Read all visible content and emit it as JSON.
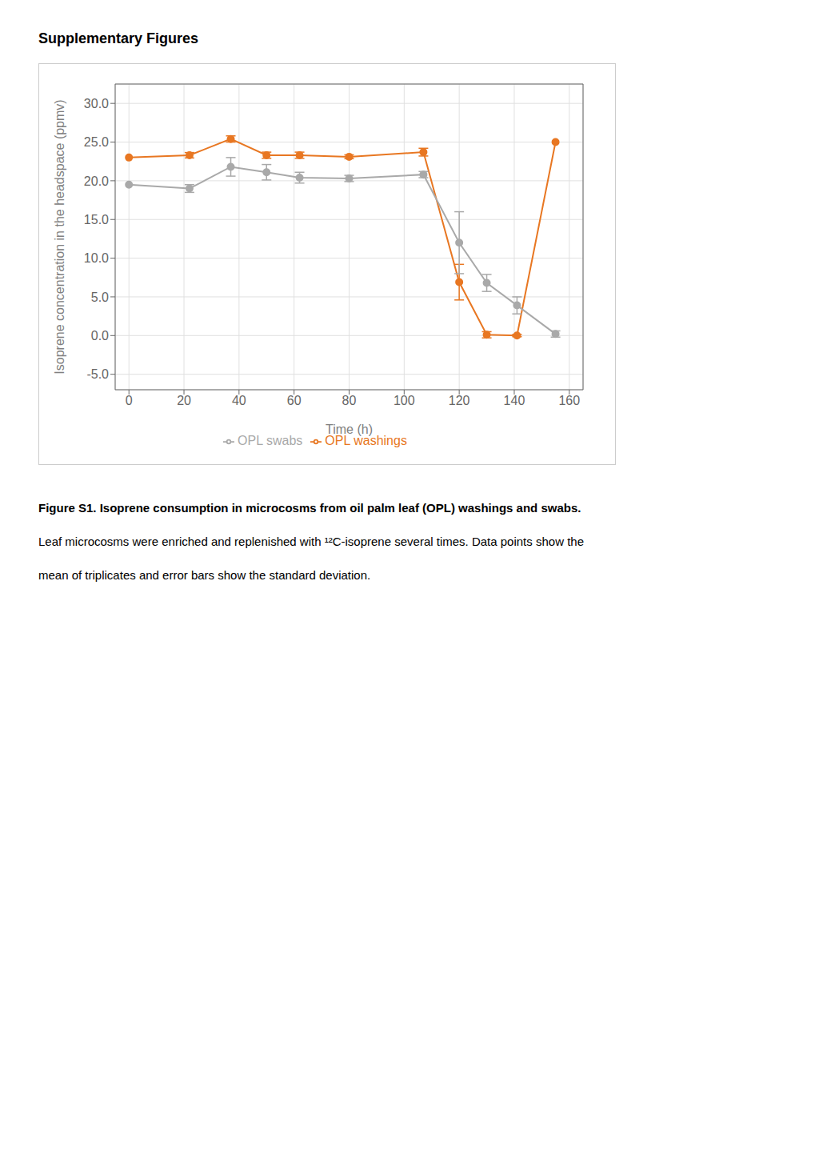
{
  "chart_data": {
    "type": "line",
    "title": "Supplementary Figures",
    "annotations": [
      "Figure S1. Isoprene consumption in microcosms from oil palm leaf (OPL) washings and swabs.",
      "Leaf microcosms were enriched and replenished with ¹²C-isoprene several times. Data points show the",
      "mean of triplicates and error bars show the standard deviation."
    ],
    "xlabel": "Time (h)",
    "ylabel": "Isoprene concentration in the headspace (ppmv)",
    "xlim": [
      -5,
      165
    ],
    "ylim": [
      -7.0,
      32.5
    ],
    "xticks": [
      0,
      20,
      40,
      60,
      80,
      100,
      120,
      140,
      160
    ],
    "yticks": [
      {
        "value": -5.0,
        "label": "-5.0"
      },
      {
        "value": 0.0,
        "label": "0.0"
      },
      {
        "value": 5.0,
        "label": "5.0"
      },
      {
        "value": 10.0,
        "label": "10.0"
      },
      {
        "value": 15.0,
        "label": "15.0"
      },
      {
        "value": 20.0,
        "label": "20.0"
      },
      {
        "value": 25.0,
        "label": "25.0"
      },
      {
        "value": 30.0,
        "label": "30.0"
      }
    ],
    "grid": true,
    "legend": "bottom",
    "x": [
      0,
      22,
      37,
      50,
      62,
      80,
      107,
      120,
      130,
      141,
      155
    ],
    "series": [
      {
        "name": "OPL washings",
        "color": "#E87722",
        "marker": "circle",
        "values": [
          23.0,
          23.3,
          25.4,
          23.3,
          23.3,
          23.1,
          23.7,
          6.9,
          0.1,
          0.0,
          25.0
        ],
        "errors": [
          0.0,
          0.35,
          0.4,
          0.4,
          0.4,
          0.25,
          0.5,
          2.3,
          0.4,
          0.15,
          0.0
        ]
      },
      {
        "name": "OPL swabs",
        "color": "#A9A9A9",
        "marker": "circle",
        "values": [
          19.5,
          19.0,
          21.8,
          21.1,
          20.4,
          20.3,
          20.8,
          12.0,
          6.8,
          3.9,
          0.2
        ],
        "errors": [
          0.0,
          0.5,
          1.2,
          1.0,
          0.7,
          0.4,
          0.4,
          4.0,
          1.1,
          1.1,
          0.4
        ]
      }
    ]
  }
}
